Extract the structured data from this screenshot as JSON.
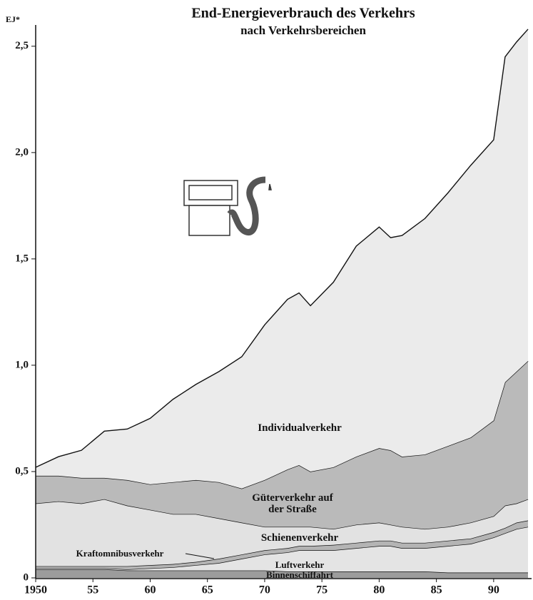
{
  "chart_data": {
    "type": "stacked_area",
    "title": "End-Energieverbrauch des Verkehrs",
    "subtitle": "nach Verkehrsbereichen",
    "y_label": "EJ*",
    "x": [
      1950,
      1952,
      1954,
      1956,
      1958,
      1960,
      1962,
      1964,
      1966,
      1968,
      1970,
      1972,
      1973,
      1974,
      1976,
      1978,
      1980,
      1981,
      1982,
      1984,
      1986,
      1988,
      1990,
      1991,
      1992,
      1993
    ],
    "series": [
      {
        "name": "Binnenschiffahrt",
        "color": "#9c9c9c",
        "values": [
          0.04,
          0.04,
          0.04,
          0.04,
          0.035,
          0.035,
          0.035,
          0.035,
          0.035,
          0.035,
          0.035,
          0.03,
          0.03,
          0.03,
          0.03,
          0.03,
          0.03,
          0.03,
          0.03,
          0.03,
          0.025,
          0.025,
          0.025,
          0.025,
          0.025,
          0.025
        ]
      },
      {
        "name": "Luftverkehr",
        "color": "#e4e4e4",
        "values": [
          0.005,
          0.005,
          0.005,
          0.005,
          0.005,
          0.01,
          0.015,
          0.025,
          0.035,
          0.055,
          0.075,
          0.09,
          0.1,
          0.1,
          0.1,
          0.11,
          0.12,
          0.12,
          0.11,
          0.11,
          0.125,
          0.135,
          0.165,
          0.185,
          0.205,
          0.215
        ]
      },
      {
        "name": "Kraftomnibusverkehr",
        "color": "#b4b4b4",
        "values": [
          0.01,
          0.01,
          0.01,
          0.01,
          0.015,
          0.015,
          0.015,
          0.015,
          0.02,
          0.02,
          0.02,
          0.02,
          0.02,
          0.02,
          0.025,
          0.025,
          0.025,
          0.025,
          0.025,
          0.025,
          0.025,
          0.025,
          0.025,
          0.025,
          0.03,
          0.03
        ]
      },
      {
        "name": "Schienenverkehr",
        "color": "#e2e2e2",
        "values": [
          0.295,
          0.305,
          0.295,
          0.315,
          0.285,
          0.26,
          0.235,
          0.225,
          0.19,
          0.15,
          0.11,
          0.1,
          0.09,
          0.09,
          0.075,
          0.085,
          0.085,
          0.075,
          0.075,
          0.065,
          0.065,
          0.075,
          0.075,
          0.105,
          0.09,
          0.1
        ]
      },
      {
        "name": "Güterverkehr auf der Straße",
        "color": "#bababa",
        "values": [
          0.13,
          0.12,
          0.12,
          0.1,
          0.12,
          0.12,
          0.15,
          0.16,
          0.17,
          0.16,
          0.22,
          0.27,
          0.29,
          0.26,
          0.29,
          0.32,
          0.35,
          0.35,
          0.33,
          0.35,
          0.38,
          0.4,
          0.45,
          0.58,
          0.62,
          0.65
        ]
      },
      {
        "name": "Individualverkehr",
        "color": "#ebebeb",
        "values": [
          0.04,
          0.09,
          0.13,
          0.22,
          0.24,
          0.31,
          0.39,
          0.45,
          0.52,
          0.62,
          0.73,
          0.8,
          0.81,
          0.78,
          0.87,
          0.99,
          1.04,
          1.0,
          1.04,
          1.11,
          1.19,
          1.28,
          1.32,
          1.53,
          1.55,
          1.56
        ]
      }
    ],
    "xlim": [
      1950,
      1993
    ],
    "ylim": [
      0,
      2.6
    ],
    "xticks": [
      1950,
      {
        "value": 1955,
        "label": "55"
      },
      {
        "value": 1960,
        "label": "60"
      },
      {
        "value": 1965,
        "label": "65"
      },
      {
        "value": 1970,
        "label": "70"
      },
      {
        "value": 1975,
        "label": "75"
      },
      {
        "value": 1980,
        "label": "80"
      },
      {
        "value": 1985,
        "label": "85"
      },
      {
        "value": 1990,
        "label": "90"
      }
    ],
    "yticks": [
      0,
      {
        "value": 0.5,
        "label": "0,5"
      },
      {
        "value": 1.0,
        "label": "1,0"
      },
      {
        "value": 1.5,
        "label": "1,5"
      },
      {
        "value": 2.0,
        "label": "2,0"
      },
      {
        "value": 2.5,
        "label": "2,5"
      }
    ]
  }
}
